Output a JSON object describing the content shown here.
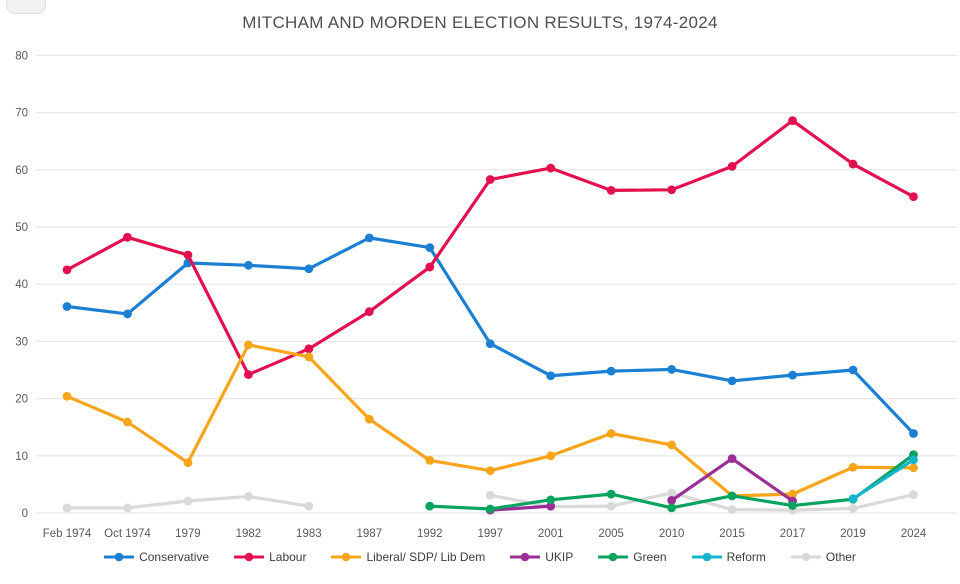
{
  "chart_data": {
    "type": "line",
    "title": "MITCHAM AND MORDEN ELECTION RESULTS, 1974-2024",
    "categories": [
      "Feb 1974",
      "Oct 1974",
      "1979",
      "1982",
      "1983",
      "1987",
      "1992",
      "1997",
      "2001",
      "2005",
      "2010",
      "2015",
      "2017",
      "2019",
      "2024"
    ],
    "series": [
      {
        "name": "Conservative",
        "color": "#1b80d4",
        "values": [
          36.1,
          34.8,
          43.7,
          43.3,
          42.7,
          48.1,
          46.4,
          29.6,
          24.0,
          24.8,
          25.1,
          23.1,
          24.1,
          25.0,
          13.9
        ]
      },
      {
        "name": "Labour",
        "color": "#e2104e",
        "values": [
          42.5,
          48.2,
          45.1,
          24.2,
          28.7,
          35.2,
          43.0,
          58.3,
          60.3,
          56.4,
          56.5,
          60.6,
          68.6,
          61.0,
          55.3
        ]
      },
      {
        "name": "Liberal/ SDP/ Lib Dem",
        "color": "#f8a51b",
        "values": [
          20.4,
          15.9,
          8.8,
          29.4,
          27.3,
          16.4,
          9.2,
          7.4,
          10.0,
          13.9,
          11.9,
          3.0,
          3.3,
          8.0,
          7.9
        ]
      },
      {
        "name": "UKIP",
        "color": "#9b2d96",
        "values": [
          null,
          null,
          null,
          null,
          null,
          null,
          null,
          0.5,
          1.2,
          null,
          2.2,
          9.5,
          2.1,
          null,
          null
        ]
      },
      {
        "name": "Green",
        "color": "#07a35f",
        "values": [
          null,
          null,
          null,
          null,
          null,
          null,
          1.2,
          0.7,
          2.3,
          3.3,
          0.9,
          3.0,
          1.3,
          2.4,
          10.2
        ]
      },
      {
        "name": "Reform",
        "color": "#14b5ca",
        "values": [
          null,
          null,
          null,
          null,
          null,
          null,
          null,
          null,
          null,
          null,
          null,
          null,
          null,
          2.5,
          9.3
        ]
      },
      {
        "name": "Other",
        "color": "#d9d9d9",
        "values": [
          0.9,
          0.9,
          2.1,
          2.9,
          1.2,
          null,
          null,
          3.1,
          1.1,
          1.2,
          3.5,
          0.6,
          0.5,
          0.8,
          3.2
        ]
      }
    ],
    "ylim": [
      0,
      80
    ],
    "ytick_step": 10,
    "grid": true,
    "legend_position": "bottom"
  },
  "colors": {
    "title_text": "#4f4f4f",
    "axis_text": "#595959",
    "gridline": "#e8e8e8",
    "legend_text": "#3c3c3c"
  }
}
